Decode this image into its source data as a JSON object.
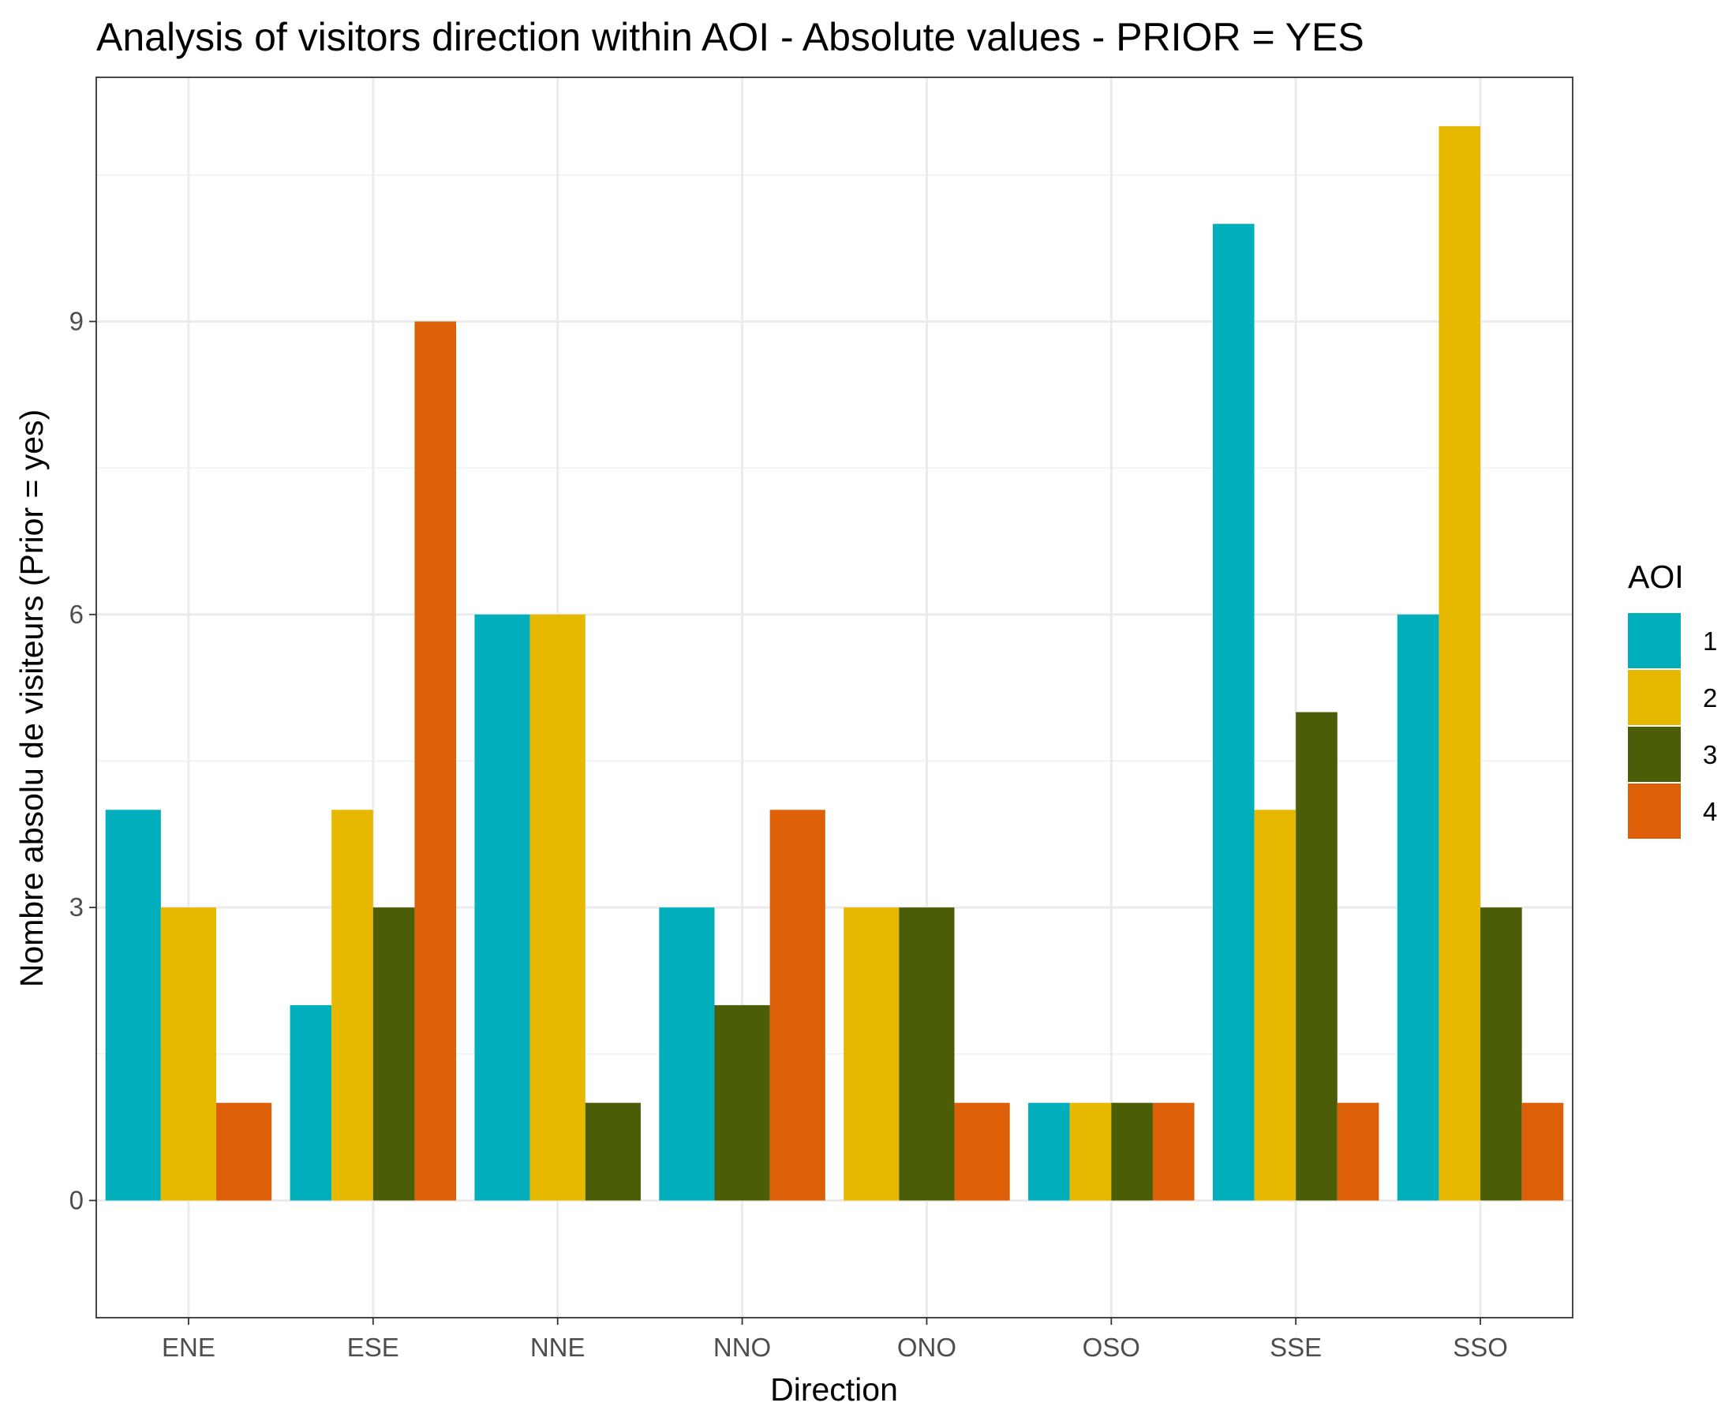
{
  "chart_data": {
    "type": "bar",
    "title": "Analysis of visitors direction within AOI - Absolute values - PRIOR = YES",
    "xlabel": "Direction",
    "ylabel": "Nombre absolu de visiteurs (Prior = yes)",
    "categories": [
      "ENE",
      "ESE",
      "NNE",
      "NNO",
      "ONO",
      "OSO",
      "SSE",
      "SSO"
    ],
    "ylim": [
      -1.2,
      11.5
    ],
    "yticks": [
      0,
      3,
      6,
      9
    ],
    "grid": true,
    "legend": {
      "title": "AOI",
      "position": "right"
    },
    "series": [
      {
        "name": "1",
        "color": "#00AFBB",
        "values": [
          4,
          2,
          6,
          3,
          null,
          1,
          10,
          6
        ]
      },
      {
        "name": "2",
        "color": "#E7B800",
        "values": [
          3,
          4,
          6,
          null,
          3,
          1,
          4,
          11
        ]
      },
      {
        "name": "3",
        "color": "#4B5E07",
        "values": [
          null,
          3,
          1,
          2,
          3,
          1,
          5,
          3
        ]
      },
      {
        "name": "4",
        "color": "#DD6008",
        "values": [
          1,
          9,
          null,
          4,
          1,
          1,
          1,
          1
        ]
      }
    ]
  }
}
